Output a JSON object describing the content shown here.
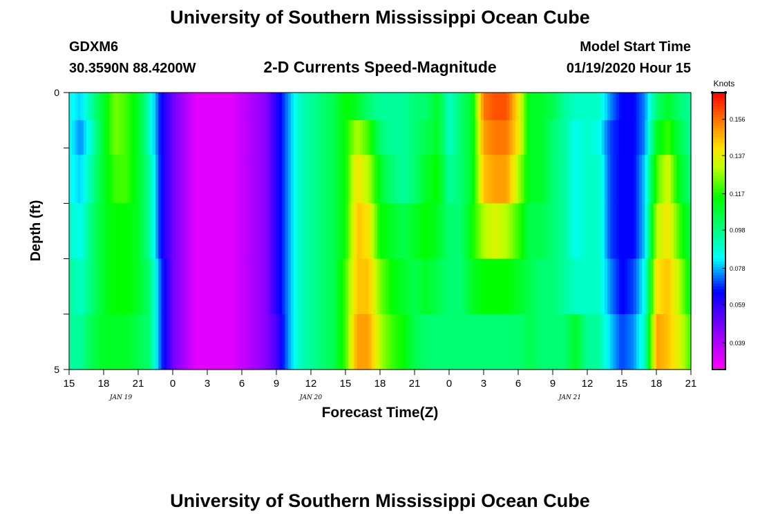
{
  "title": "University of Southern Mississippi Ocean Cube",
  "footer_title": "University of Southern Mississippi Ocean Cube",
  "station": {
    "id": "GDXM6",
    "coords": "30.3590N 88.4200W"
  },
  "model_start": {
    "label": "Model Start Time",
    "value": "01/19/2020 Hour 15"
  },
  "chart_data": {
    "type": "heatmap",
    "title": "2-D Currents Speed-Magnitude",
    "xlabel": "Forecast Time(Z)",
    "ylabel": "Depth (ft)",
    "x_tick_labels": [
      "15",
      "18",
      "21",
      "0",
      "3",
      "6",
      "9",
      "12",
      "15",
      "18",
      "21",
      "0",
      "3",
      "6",
      "9",
      "12",
      "15",
      "18",
      "21"
    ],
    "x_range_hours": [
      0,
      54
    ],
    "date_labels": [
      {
        "text": "JAN 19",
        "hour": 4.5
      },
      {
        "text": "JAN 20",
        "hour": 21
      },
      {
        "text": "JAN 21",
        "hour": 43.5
      }
    ],
    "y_range_ft": [
      0,
      5
    ],
    "y_tick_labels": [
      "0",
      "5"
    ],
    "y_minor_ticks_ft": [
      0,
      1,
      2,
      3,
      4,
      5
    ],
    "depth_layers_ft": [
      0.25,
      0.75,
      1.5,
      2.5,
      3.5,
      4.5
    ],
    "colorbar": {
      "unit": "Knots",
      "min": 0.025,
      "max": 0.17,
      "ticks": [
        0.156,
        0.137,
        0.117,
        0.098,
        0.078,
        0.059,
        0.039
      ],
      "tick_labels": [
        "0.156",
        "0.137",
        "0.117",
        "0.098",
        "0.078",
        "0.059",
        "0.039"
      ]
    },
    "time_hours": [
      0,
      1,
      2,
      3,
      4,
      5,
      6,
      7,
      8,
      9,
      10,
      11,
      12,
      13,
      14,
      15,
      16,
      17,
      18,
      19,
      20,
      21,
      22,
      23,
      24,
      25,
      26,
      27,
      28,
      29,
      30,
      31,
      32,
      33,
      34,
      35,
      36,
      37,
      38,
      39,
      40,
      41,
      42,
      43,
      44,
      45,
      46,
      47,
      48,
      49,
      50,
      51,
      52,
      53,
      54
    ],
    "speed_knots": [
      [
        0.085,
        0.08,
        0.095,
        0.11,
        0.125,
        0.12,
        0.11,
        0.09,
        0.065,
        0.05,
        0.04,
        0.03,
        0.03,
        0.03,
        0.03,
        0.035,
        0.04,
        0.045,
        0.06,
        0.075,
        0.09,
        0.095,
        0.1,
        0.105,
        0.115,
        0.11,
        0.1,
        0.095,
        0.095,
        0.095,
        0.1,
        0.1,
        0.11,
        0.09,
        0.1,
        0.11,
        0.155,
        0.16,
        0.16,
        0.14,
        0.11,
        0.11,
        0.105,
        0.095,
        0.09,
        0.09,
        0.09,
        0.075,
        0.065,
        0.065,
        0.075,
        0.1,
        0.11,
        0.1,
        0.095
      ],
      [
        0.085,
        0.075,
        0.09,
        0.11,
        0.125,
        0.12,
        0.11,
        0.09,
        0.065,
        0.05,
        0.04,
        0.03,
        0.03,
        0.03,
        0.03,
        0.035,
        0.04,
        0.045,
        0.06,
        0.075,
        0.09,
        0.095,
        0.1,
        0.105,
        0.115,
        0.13,
        0.12,
        0.1,
        0.095,
        0.095,
        0.1,
        0.105,
        0.11,
        0.09,
        0.1,
        0.11,
        0.15,
        0.155,
        0.155,
        0.14,
        0.11,
        0.11,
        0.1,
        0.095,
        0.085,
        0.09,
        0.085,
        0.07,
        0.065,
        0.065,
        0.075,
        0.11,
        0.12,
        0.105,
        0.095
      ],
      [
        0.085,
        0.08,
        0.095,
        0.11,
        0.12,
        0.12,
        0.11,
        0.095,
        0.065,
        0.05,
        0.04,
        0.03,
        0.03,
        0.03,
        0.03,
        0.035,
        0.04,
        0.045,
        0.06,
        0.075,
        0.09,
        0.095,
        0.1,
        0.105,
        0.115,
        0.14,
        0.13,
        0.11,
        0.1,
        0.095,
        0.1,
        0.11,
        0.115,
        0.095,
        0.1,
        0.11,
        0.145,
        0.15,
        0.15,
        0.13,
        0.11,
        0.11,
        0.1,
        0.095,
        0.085,
        0.09,
        0.09,
        0.07,
        0.065,
        0.065,
        0.08,
        0.12,
        0.135,
        0.11,
        0.1
      ],
      [
        0.09,
        0.085,
        0.1,
        0.11,
        0.115,
        0.115,
        0.11,
        0.095,
        0.065,
        0.05,
        0.04,
        0.03,
        0.03,
        0.03,
        0.03,
        0.035,
        0.04,
        0.045,
        0.06,
        0.075,
        0.09,
        0.095,
        0.1,
        0.105,
        0.115,
        0.145,
        0.14,
        0.115,
        0.11,
        0.105,
        0.11,
        0.115,
        0.11,
        0.1,
        0.1,
        0.115,
        0.13,
        0.135,
        0.13,
        0.12,
        0.105,
        0.105,
        0.1,
        0.095,
        0.085,
        0.09,
        0.09,
        0.07,
        0.065,
        0.065,
        0.08,
        0.13,
        0.14,
        0.12,
        0.105
      ],
      [
        0.095,
        0.09,
        0.1,
        0.11,
        0.115,
        0.115,
        0.11,
        0.1,
        0.07,
        0.05,
        0.04,
        0.03,
        0.03,
        0.03,
        0.03,
        0.035,
        0.04,
        0.045,
        0.06,
        0.075,
        0.09,
        0.095,
        0.1,
        0.105,
        0.12,
        0.145,
        0.145,
        0.125,
        0.115,
        0.11,
        0.105,
        0.11,
        0.105,
        0.1,
        0.1,
        0.11,
        0.115,
        0.115,
        0.115,
        0.11,
        0.105,
        0.1,
        0.1,
        0.095,
        0.09,
        0.09,
        0.09,
        0.075,
        0.065,
        0.07,
        0.085,
        0.14,
        0.145,
        0.13,
        0.11
      ],
      [
        0.095,
        0.095,
        0.105,
        0.11,
        0.11,
        0.11,
        0.105,
        0.1,
        0.07,
        0.05,
        0.04,
        0.03,
        0.03,
        0.03,
        0.03,
        0.035,
        0.04,
        0.045,
        0.055,
        0.075,
        0.09,
        0.095,
        0.1,
        0.105,
        0.12,
        0.15,
        0.15,
        0.13,
        0.12,
        0.115,
        0.105,
        0.1,
        0.1,
        0.1,
        0.1,
        0.1,
        0.1,
        0.1,
        0.1,
        0.1,
        0.105,
        0.1,
        0.1,
        0.1,
        0.11,
        0.095,
        0.095,
        0.08,
        0.07,
        0.075,
        0.09,
        0.15,
        0.145,
        0.135,
        0.12
      ]
    ]
  }
}
